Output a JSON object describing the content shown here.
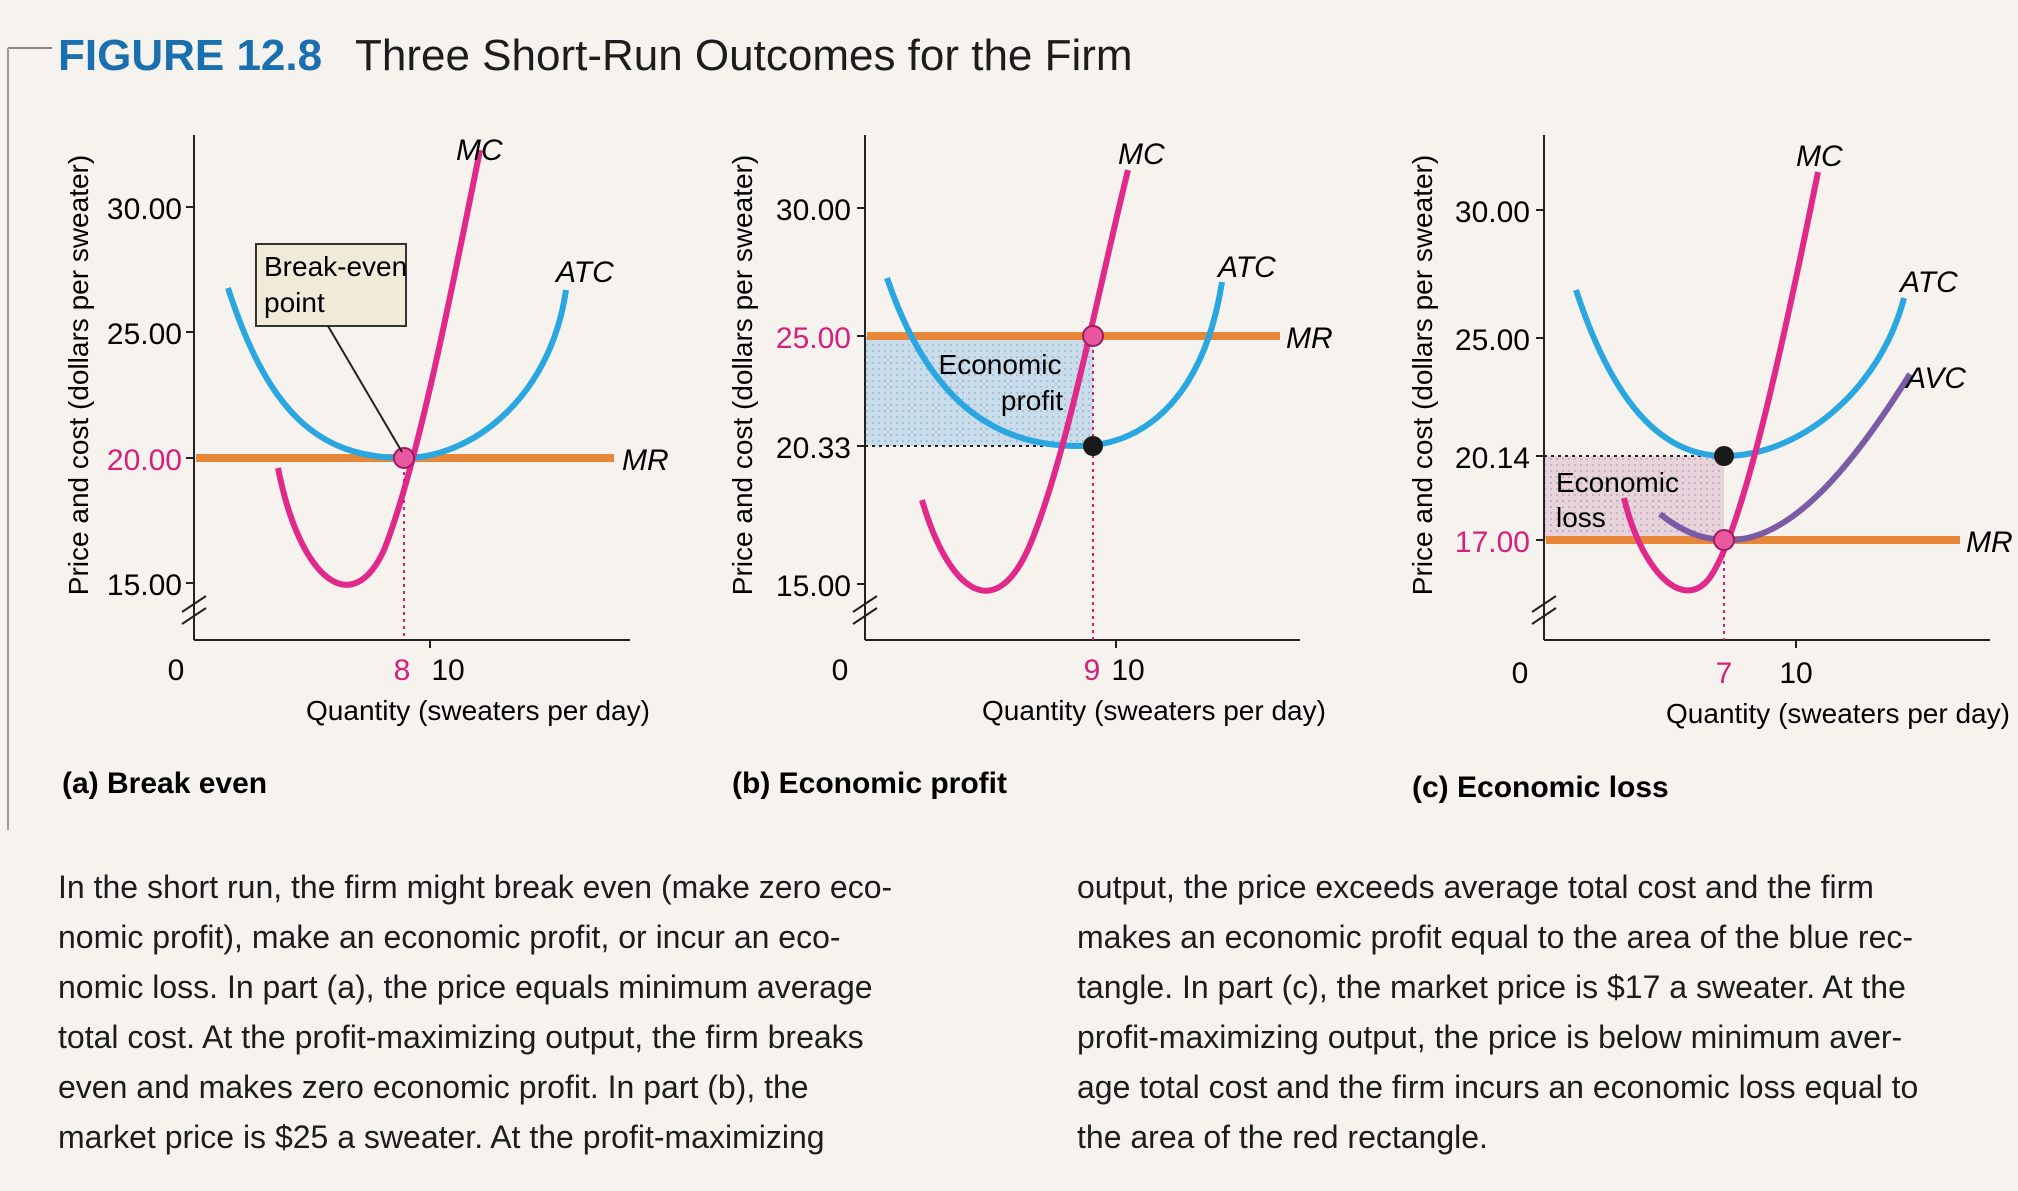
{
  "figure": {
    "number": "FIGURE 12.8",
    "title": "Three Short-Run Outcomes for the Firm"
  },
  "colors": {
    "figure_label": "#1a6fae",
    "mc_curve": "#e0298a",
    "atc_curve": "#2aa6e0",
    "avc_curve": "#7b5aa6",
    "mr_line": "#e8863a",
    "price_label": "#d81f7a",
    "profit_fill": "#c8dcea",
    "loss_fill": "#e6d3dc",
    "callout_fill": "#f0ead8"
  },
  "panels": [
    {
      "id": "a",
      "title": "(a) Break even",
      "ylabel": "Price and cost (dollars per sweater)",
      "xlabel": "Quantity (sweaters per day)",
      "y_ticks": [
        "30.00",
        "25.00",
        "20.00",
        "15.00"
      ],
      "x_ticks": [
        "8",
        "10"
      ],
      "origin": "0",
      "curve_labels": {
        "mc": "MC",
        "atc": "ATC",
        "mr": "MR"
      },
      "callout": {
        "line1": "Break-even",
        "line2": "point"
      }
    },
    {
      "id": "b",
      "title": "(b) Economic profit",
      "ylabel": "Price and cost (dollars per sweater)",
      "xlabel": "Quantity (sweaters per day)",
      "y_ticks": [
        "30.00",
        "25.00",
        "20.33",
        "15.00"
      ],
      "x_ticks": [
        "9",
        "10"
      ],
      "origin": "0",
      "curve_labels": {
        "mc": "MC",
        "atc": "ATC",
        "mr": "MR"
      },
      "area_label": {
        "line1": "Economic",
        "line2": "profit"
      }
    },
    {
      "id": "c",
      "title": "(c) Economic loss",
      "ylabel": "Price and cost (dollars per sweater)",
      "xlabel": "Quantity (sweaters per day)",
      "y_ticks": [
        "30.00",
        "25.00",
        "20.14",
        "17.00"
      ],
      "x_ticks": [
        "7",
        "10"
      ],
      "origin": "0",
      "curve_labels": {
        "mc": "MC",
        "atc": "ATC",
        "avc": "AVC",
        "mr": "MR"
      },
      "area_label": {
        "line1": "Economic",
        "line2": "loss"
      }
    }
  ],
  "caption": {
    "left": "In the short run, the firm might break even (make zero eco-\nnomic profit), make an economic profit, or incur an eco-\nnomic loss. In part (a), the price equals minimum average\ntotal cost. At the profit-maximizing output, the firm breaks\neven and makes zero economic profit. In part (b), the\nmarket price is $25 a sweater. At the profit-maximizing",
    "right": "output, the price exceeds average total cost and the firm\nmakes an economic profit equal to the area of the blue rec-\ntangle. In part (c), the market price is $17 a sweater. At the\nprofit-maximizing output, the price is below minimum aver-\nage total cost and the firm incurs an economic loss equal to\nthe area of the red rectangle."
  }
}
